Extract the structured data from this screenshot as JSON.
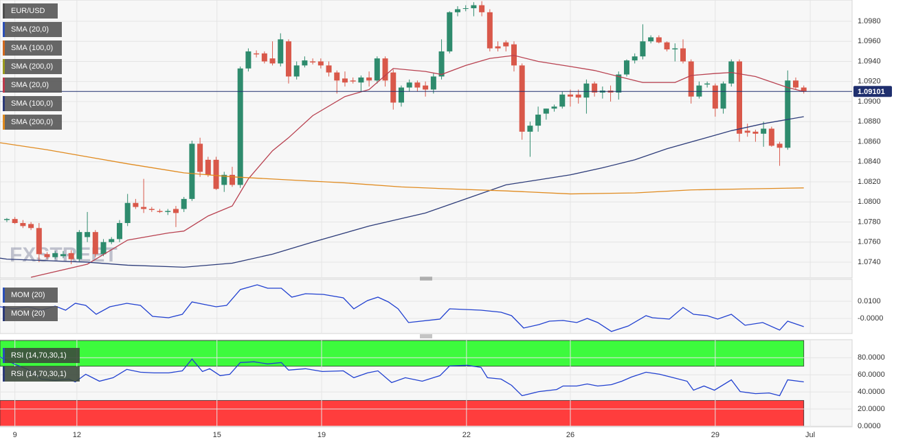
{
  "chart_data": [
    {
      "type": "candlestick",
      "legend": [
        {
          "label": "EUR/USD",
          "color": "#4d4d4d"
        },
        {
          "label": "SMA (20,0)",
          "color": "#2a4fb8"
        },
        {
          "label": "SMA (100,0)",
          "color": "#d2691e"
        },
        {
          "label": "SMA (200,0)",
          "color": "#9a9a1e"
        },
        {
          "label": "SMA (20,0)",
          "color": "#c0394b"
        },
        {
          "label": "SMA (100,0)",
          "color": "#2b3a78"
        },
        {
          "label": "SMA (200,0)",
          "color": "#e08a1e"
        }
      ],
      "watermark": "FXSTREET",
      "up_color": "#2e8b6d",
      "down_color": "#d9584a",
      "open": [
        1.0782,
        1.0783,
        1.0779,
        1.0778,
        1.0774,
        1.0748,
        1.0745,
        1.0746,
        1.0749,
        1.0743,
        1.0765,
        1.077,
        1.0748,
        1.076,
        1.0763,
        1.0779,
        1.0799,
        1.0795,
        1.0793,
        1.0791,
        1.079,
        1.0793,
        1.0793,
        1.0803,
        1.0858,
        1.0842,
        1.0842,
        1.0817,
        1.0827,
        1.0817,
        1.0933,
        1.0948,
        1.0948,
        1.0943,
        1.0938,
        1.096,
        1.0925,
        1.0936,
        1.094,
        1.094,
        1.0936,
        1.0929,
        1.0923,
        1.0921,
        1.0919,
        1.0924,
        1.0921,
        1.0943,
        1.0929,
        1.0899,
        1.0914,
        1.0919,
        1.0916,
        1.0912,
        1.0925,
        1.095,
        1.0989,
        1.0993,
        1.0993,
        1.0996,
        1.0989,
        1.0955,
        1.0959,
        1.0957,
        1.0936,
        1.087,
        1.0876,
        1.0888,
        1.0893,
        1.0895,
        1.0907,
        1.0907,
        1.0904,
        1.0918,
        1.0909,
        1.0911,
        1.0909,
        1.0927,
        1.0941,
        1.0945,
        1.096,
        1.0964,
        1.0959,
        1.0952,
        1.0953,
        1.094,
        1.0905,
        1.0917,
        1.0916,
        1.0893,
        1.0918,
        1.094,
        1.0871,
        1.087,
        1.0868,
        1.0873,
        1.0858,
        1.0854,
        1.0921,
        1.0914
      ],
      "high": [
        1.0784,
        1.0785,
        1.0782,
        1.078,
        1.0779,
        1.075,
        1.0751,
        1.0751,
        1.0752,
        1.0772,
        1.079,
        1.0772,
        1.0763,
        1.0765,
        1.0782,
        1.0808,
        1.0803,
        1.0823,
        1.0795,
        1.0793,
        1.0793,
        1.0796,
        1.0805,
        1.0861,
        1.0864,
        1.0845,
        1.0845,
        1.083,
        1.0835,
        1.0935,
        1.0953,
        1.0951,
        1.095,
        1.096,
        1.0968,
        1.0962,
        1.094,
        1.0945,
        1.0943,
        1.0943,
        1.094,
        1.0931,
        1.093,
        1.0924,
        1.0926,
        1.093,
        1.0945,
        1.0945,
        1.0932,
        1.0916,
        1.0922,
        1.0921,
        1.092,
        1.0928,
        1.0962,
        1.099,
        1.0995,
        1.0996,
        1.0999,
        1.1,
        1.0992,
        1.096,
        1.0961,
        1.096,
        1.0938,
        1.088,
        1.0895,
        1.0893,
        1.0897,
        1.091,
        1.0912,
        1.0912,
        1.0922,
        1.092,
        1.0915,
        1.0916,
        1.093,
        1.0942,
        1.0948,
        1.0977,
        1.0966,
        1.0966,
        1.096,
        1.0958,
        1.0962,
        1.0942,
        1.092,
        1.092,
        1.0918,
        1.092,
        1.0942,
        1.0942,
        1.0878,
        1.0872,
        1.088,
        1.0875,
        1.086,
        1.0931,
        1.0924,
        1.0916
      ],
      "low": [
        1.078,
        1.0778,
        1.0774,
        1.0772,
        1.074,
        1.0743,
        1.0743,
        1.0744,
        1.0738,
        1.0741,
        1.076,
        1.0745,
        1.0746,
        1.0758,
        1.076,
        1.0776,
        1.0793,
        1.0789,
        1.079,
        1.0789,
        1.0787,
        1.0775,
        1.079,
        1.0801,
        1.0825,
        1.0825,
        1.0812,
        1.081,
        1.0815,
        1.0814,
        1.093,
        1.0944,
        1.0938,
        1.0936,
        1.0935,
        1.0918,
        1.0922,
        1.0934,
        1.0937,
        1.0933,
        1.0925,
        1.0908,
        1.0915,
        1.0918,
        1.091,
        1.0915,
        1.0918,
        1.0915,
        1.0892,
        1.0895,
        1.091,
        1.091,
        1.0905,
        1.0908,
        1.0922,
        1.0948,
        1.0985,
        1.099,
        1.0985,
        1.0985,
        1.095,
        1.095,
        1.095,
        1.093,
        1.0862,
        1.0845,
        1.087,
        1.0882,
        1.089,
        1.0893,
        1.0895,
        1.0898,
        1.0888,
        1.0905,
        1.0903,
        1.09,
        1.0902,
        1.0925,
        1.0938,
        1.0942,
        1.0958,
        1.0958,
        1.095,
        1.094,
        1.0938,
        1.0898,
        1.0903,
        1.0914,
        1.0885,
        1.0888,
        1.0915,
        1.086,
        1.0865,
        1.086,
        1.0855,
        1.0855,
        1.0836,
        1.0852,
        1.0912,
        1.0908
      ],
      "close": [
        1.0783,
        1.0779,
        1.0776,
        1.0774,
        1.0748,
        1.0745,
        1.0749,
        1.0748,
        1.0743,
        1.077,
        1.077,
        1.0748,
        1.076,
        1.0763,
        1.0779,
        1.0799,
        1.0795,
        1.0793,
        1.0792,
        1.079,
        1.0791,
        1.0789,
        1.0803,
        1.0858,
        1.083,
        1.0827,
        1.0813,
        1.0827,
        1.0817,
        1.0933,
        1.095,
        1.0947,
        1.094,
        1.0938,
        1.0962,
        1.0925,
        1.0936,
        1.0941,
        1.0939,
        1.0936,
        1.0929,
        1.0921,
        1.0919,
        1.092,
        1.0924,
        1.0921,
        1.0943,
        1.0921,
        1.0899,
        1.0914,
        1.0919,
        1.0914,
        1.0912,
        1.0925,
        1.095,
        1.0989,
        1.0992,
        1.0993,
        1.0996,
        1.0989,
        1.0953,
        1.0953,
        1.0955,
        1.0936,
        1.087,
        1.0876,
        1.0887,
        1.0893,
        1.0895,
        1.0907,
        1.0905,
        1.0904,
        1.0918,
        1.0909,
        1.0911,
        1.0909,
        1.0927,
        1.0941,
        1.0945,
        1.096,
        1.0964,
        1.0959,
        1.0952,
        1.0953,
        1.094,
        1.0905,
        1.0916,
        1.0918,
        1.0893,
        1.0918,
        1.094,
        1.0868,
        1.0869,
        1.0868,
        1.0873,
        1.0856,
        1.0854,
        1.0921,
        1.0914,
        1.091
      ],
      "series": [
        {
          "color": "#b8404f",
          "legend_index": 4,
          "x": [
            3,
            10,
            15,
            20,
            22,
            25,
            28,
            30,
            33,
            35,
            38,
            42,
            45,
            48,
            52,
            54,
            57,
            60,
            63,
            66,
            70,
            73,
            76,
            79,
            83,
            85,
            88,
            90,
            93,
            97,
            99
          ],
          "values": [
            1.0725,
            1.0738,
            1.0762,
            1.0769,
            1.0771,
            1.0786,
            1.0796,
            1.0823,
            1.0851,
            1.0864,
            1.0886,
            1.0905,
            1.0912,
            1.0933,
            1.093,
            1.0927,
            1.0936,
            1.0943,
            1.0946,
            1.094,
            1.0935,
            1.0931,
            1.0925,
            1.0919,
            1.0919,
            1.0926,
            1.0928,
            1.0929,
            1.0925,
            1.0914,
            1.091
          ]
        },
        {
          "color": "#2b3a78",
          "legend_index": 5,
          "x": [
            -0.85,
            0,
            10,
            15,
            22,
            28,
            33,
            38,
            45,
            52,
            57,
            62,
            66,
            70,
            74,
            78,
            82,
            86,
            90,
            94,
            99
          ],
          "values": [
            1.0744,
            1.0743,
            1.074,
            1.0737,
            1.0735,
            1.0739,
            1.0748,
            1.076,
            1.0776,
            1.0789,
            1.0803,
            1.0817,
            1.0822,
            1.0827,
            1.0834,
            1.0842,
            1.0853,
            1.0862,
            1.0871,
            1.0878,
            1.0885
          ]
        },
        {
          "color": "#e08a1e",
          "legend_index": 6,
          "x": [
            -0.85,
            5,
            10,
            15,
            22,
            28,
            35,
            42,
            49,
            55,
            62,
            70,
            78,
            85,
            92,
            99
          ],
          "values": [
            1.0859,
            1.0852,
            1.0845,
            1.0838,
            1.0829,
            1.0825,
            1.0822,
            1.0819,
            1.0815,
            1.0813,
            1.0811,
            1.0808,
            1.0809,
            1.0812,
            1.0813,
            1.0814
          ]
        }
      ],
      "last_price": {
        "value": 1.09101,
        "label": "1.09101"
      },
      "xlim": [
        -0.85,
        105
      ],
      "xticks": [
        {
          "value": 1.0,
          "label": "9"
        },
        {
          "value": 8.7,
          "label": "12"
        },
        {
          "value": 26.1,
          "label": "15"
        },
        {
          "value": 39.1,
          "label": "19"
        },
        {
          "value": 57.1,
          "label": "22"
        },
        {
          "value": 70,
          "label": "26"
        },
        {
          "value": 88,
          "label": "29"
        },
        {
          "value": 99.8,
          "label": "Jul"
        }
      ],
      "ylim": [
        1.07243,
        1.10012
      ],
      "yticks": [
        {
          "value": 1.074,
          "label": "1.0740"
        },
        {
          "value": 1.076,
          "label": "1.0760"
        },
        {
          "value": 1.078,
          "label": "1.0780"
        },
        {
          "value": 1.08,
          "label": "1.0800"
        },
        {
          "value": 1.082,
          "label": "1.0820"
        },
        {
          "value": 1.084,
          "label": "1.0840"
        },
        {
          "value": 1.086,
          "label": "1.0860"
        },
        {
          "value": 1.088,
          "label": "1.0880"
        },
        {
          "value": 1.09,
          "label": "1.0900"
        },
        {
          "value": 1.092,
          "label": "1.0920"
        },
        {
          "value": 1.094,
          "label": "1.0940"
        },
        {
          "value": 1.096,
          "label": "1.0960"
        },
        {
          "value": 1.098,
          "label": "1.0980"
        }
      ],
      "grid": true
    },
    {
      "type": "line",
      "legend": [
        {
          "label": "MOM (20)",
          "color": "#2a4fb8"
        },
        {
          "label": "MOM (20)",
          "color": "#2b3a78"
        }
      ],
      "series": [
        {
          "color": "#1f3fd0",
          "x": [
            -0.85,
            0.9,
            2.6,
            4.3,
            6,
            7.3,
            8.5,
            9.8,
            11.1,
            12.8,
            14.9,
            16.6,
            18.1,
            20.1,
            21.8,
            23,
            24.7,
            26,
            27.3,
            29,
            31.1,
            32.4,
            34.1,
            35.4,
            37.1,
            39.3,
            41.8,
            43.1,
            44.8,
            46.1,
            47.4,
            48.6,
            49.9,
            53.8,
            55,
            58.9,
            61.4,
            62.7,
            64.2,
            66.1,
            67.4,
            69.1,
            70.8,
            72.1,
            73.4,
            75.1,
            77.2,
            79.4,
            80.2,
            82.3,
            84,
            85.3,
            87,
            88.3,
            90,
            91.7,
            93.9,
            96,
            97,
            99
          ],
          "values": [
            0.0068,
            0.0056,
            0.0068,
            0.0048,
            0.0072,
            0.0048,
            0.0088,
            0.0076,
            0.0024,
            0.0068,
            0.0088,
            0.0076,
            0.0012,
            0.0004,
            0.0024,
            0.0096,
            0.008,
            0.0068,
            0.0076,
            0.0168,
            0.0196,
            0.0176,
            0.0176,
            0.0124,
            0.0144,
            0.014,
            0.012,
            0.0056,
            0.0104,
            0.0124,
            0.0096,
            0.0056,
            -0.0024,
            -0.0004,
            0.0056,
            0.0048,
            0.0036,
            0.0016,
            -0.0056,
            -0.0036,
            -0.0016,
            -0.0012,
            -0.0024,
            0,
            -0.0024,
            -0.0076,
            -0.0044,
            0.0016,
            0.0004,
            -0.0004,
            0.0064,
            0.0024,
            0.0016,
            -0.0004,
            0.0024,
            -0.004,
            -0.0024,
            -0.0068,
            -0.0016,
            -0.0048
          ]
        }
      ],
      "xlim": [
        -0.85,
        105
      ],
      "ylim": [
        -0.0088,
        0.0228
      ],
      "yticks": [
        {
          "value": 0.01,
          "label": "0.0100"
        },
        {
          "value": 0,
          "label": "-0.0000"
        }
      ],
      "grid": true
    },
    {
      "type": "line",
      "legend": [
        {
          "label": "RSI (14,70,30,1)",
          "color": "#2a4fb8"
        },
        {
          "label": "RSI (14,70,30,1)",
          "color": "#2b3a78"
        }
      ],
      "bands": [
        {
          "from": 70,
          "to": 100,
          "color": "#3dfa3d"
        },
        {
          "from": 0,
          "to": 30,
          "color": "#ff3d3d"
        }
      ],
      "series": [
        {
          "color": "#1f3fd0",
          "x": [
            -0.85,
            0.9,
            2.6,
            4.3,
            6,
            7.7,
            8.5,
            9.8,
            11.5,
            13.2,
            14.9,
            16.6,
            18.3,
            20.1,
            21.8,
            23,
            24.3,
            25.2,
            26.5,
            27.7,
            29,
            30.7,
            32.4,
            34.1,
            35,
            37.1,
            39.2,
            41.8,
            43.1,
            44.8,
            46.1,
            47.8,
            49.5,
            51.6,
            53.8,
            55,
            57.2,
            58.9,
            59.7,
            61.4,
            62.7,
            64,
            66.1,
            68.3,
            69.1,
            70.8,
            72.1,
            73.4,
            75.1,
            76.4,
            77.6,
            79.4,
            81.1,
            82.8,
            84.5,
            85.3,
            86.6,
            87.9,
            90,
            91.1,
            93,
            94.7,
            96,
            97,
            99
          ],
          "values": [
            80.8,
            72.7,
            66.3,
            55.0,
            53.3,
            55.0,
            51.7,
            60.6,
            52.5,
            56.6,
            66.3,
            63.0,
            62.2,
            62.2,
            64.6,
            78.4,
            63.8,
            67.1,
            59.0,
            60.6,
            74.3,
            75.2,
            72.7,
            74.3,
            65.5,
            67.1,
            63.8,
            64.6,
            56.6,
            62.2,
            64.6,
            50.9,
            56.6,
            52.5,
            59.0,
            70.3,
            71.1,
            68.7,
            56.6,
            55.0,
            47.7,
            35.6,
            40.4,
            42.8,
            46.9,
            46.9,
            49.3,
            46.9,
            48.5,
            52.5,
            57.4,
            63.0,
            60.6,
            56.6,
            52.5,
            42.0,
            46.9,
            42.0,
            54.1,
            40.4,
            38.0,
            38.8,
            35.6,
            54.1,
            51.7
          ]
        }
      ],
      "xlim": [
        -0.85,
        105
      ],
      "ylim": [
        -0.8,
        101
      ],
      "yticks": [
        {
          "value": 80,
          "label": "80.0000"
        },
        {
          "value": 60,
          "label": "60.0000"
        },
        {
          "value": 40,
          "label": "40.0000"
        },
        {
          "value": 20,
          "label": "20.0000"
        },
        {
          "value": 0,
          "label": "0.0000"
        }
      ],
      "grid": true
    }
  ]
}
